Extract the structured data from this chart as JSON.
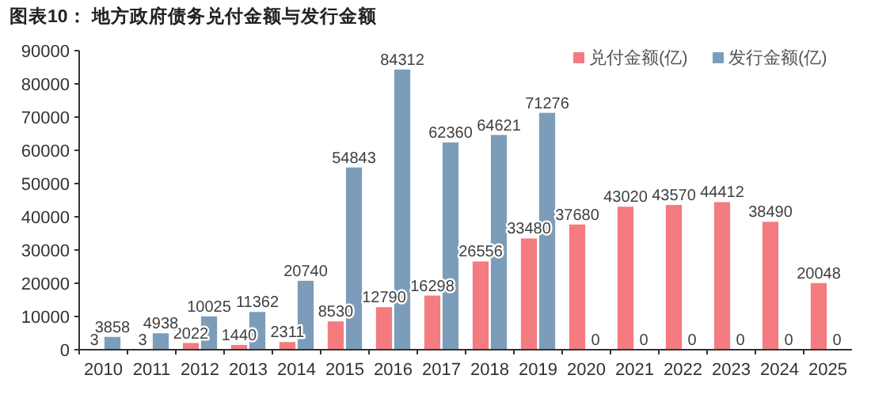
{
  "chart_data": {
    "type": "bar",
    "title": "图表10：  地方政府债务兑付金额与发行金额",
    "categories": [
      "2010",
      "2011",
      "2012",
      "2013",
      "2014",
      "2015",
      "2016",
      "2017",
      "2018",
      "2019",
      "2020",
      "2021",
      "2022",
      "2023",
      "2024",
      "2025"
    ],
    "series": [
      {
        "name": "兑付金额(亿)",
        "color": "#f47b80",
        "values": [
          3,
          3,
          2022,
          1440,
          2311,
          8530,
          12790,
          16298,
          26556,
          33480,
          37680,
          43020,
          43570,
          44412,
          38490,
          20048
        ]
      },
      {
        "name": "发行金额(亿)",
        "color": "#7c9db9",
        "values": [
          3858,
          4938,
          10025,
          11362,
          20740,
          54843,
          84312,
          62360,
          64621,
          71276,
          0,
          0,
          0,
          0,
          0,
          0
        ]
      }
    ],
    "ylim": [
      0,
      90000
    ],
    "yticks": [
      0,
      10000,
      20000,
      30000,
      40000,
      50000,
      60000,
      70000,
      80000,
      90000
    ],
    "data_labels": true,
    "legend": "top right",
    "grid": false
  }
}
